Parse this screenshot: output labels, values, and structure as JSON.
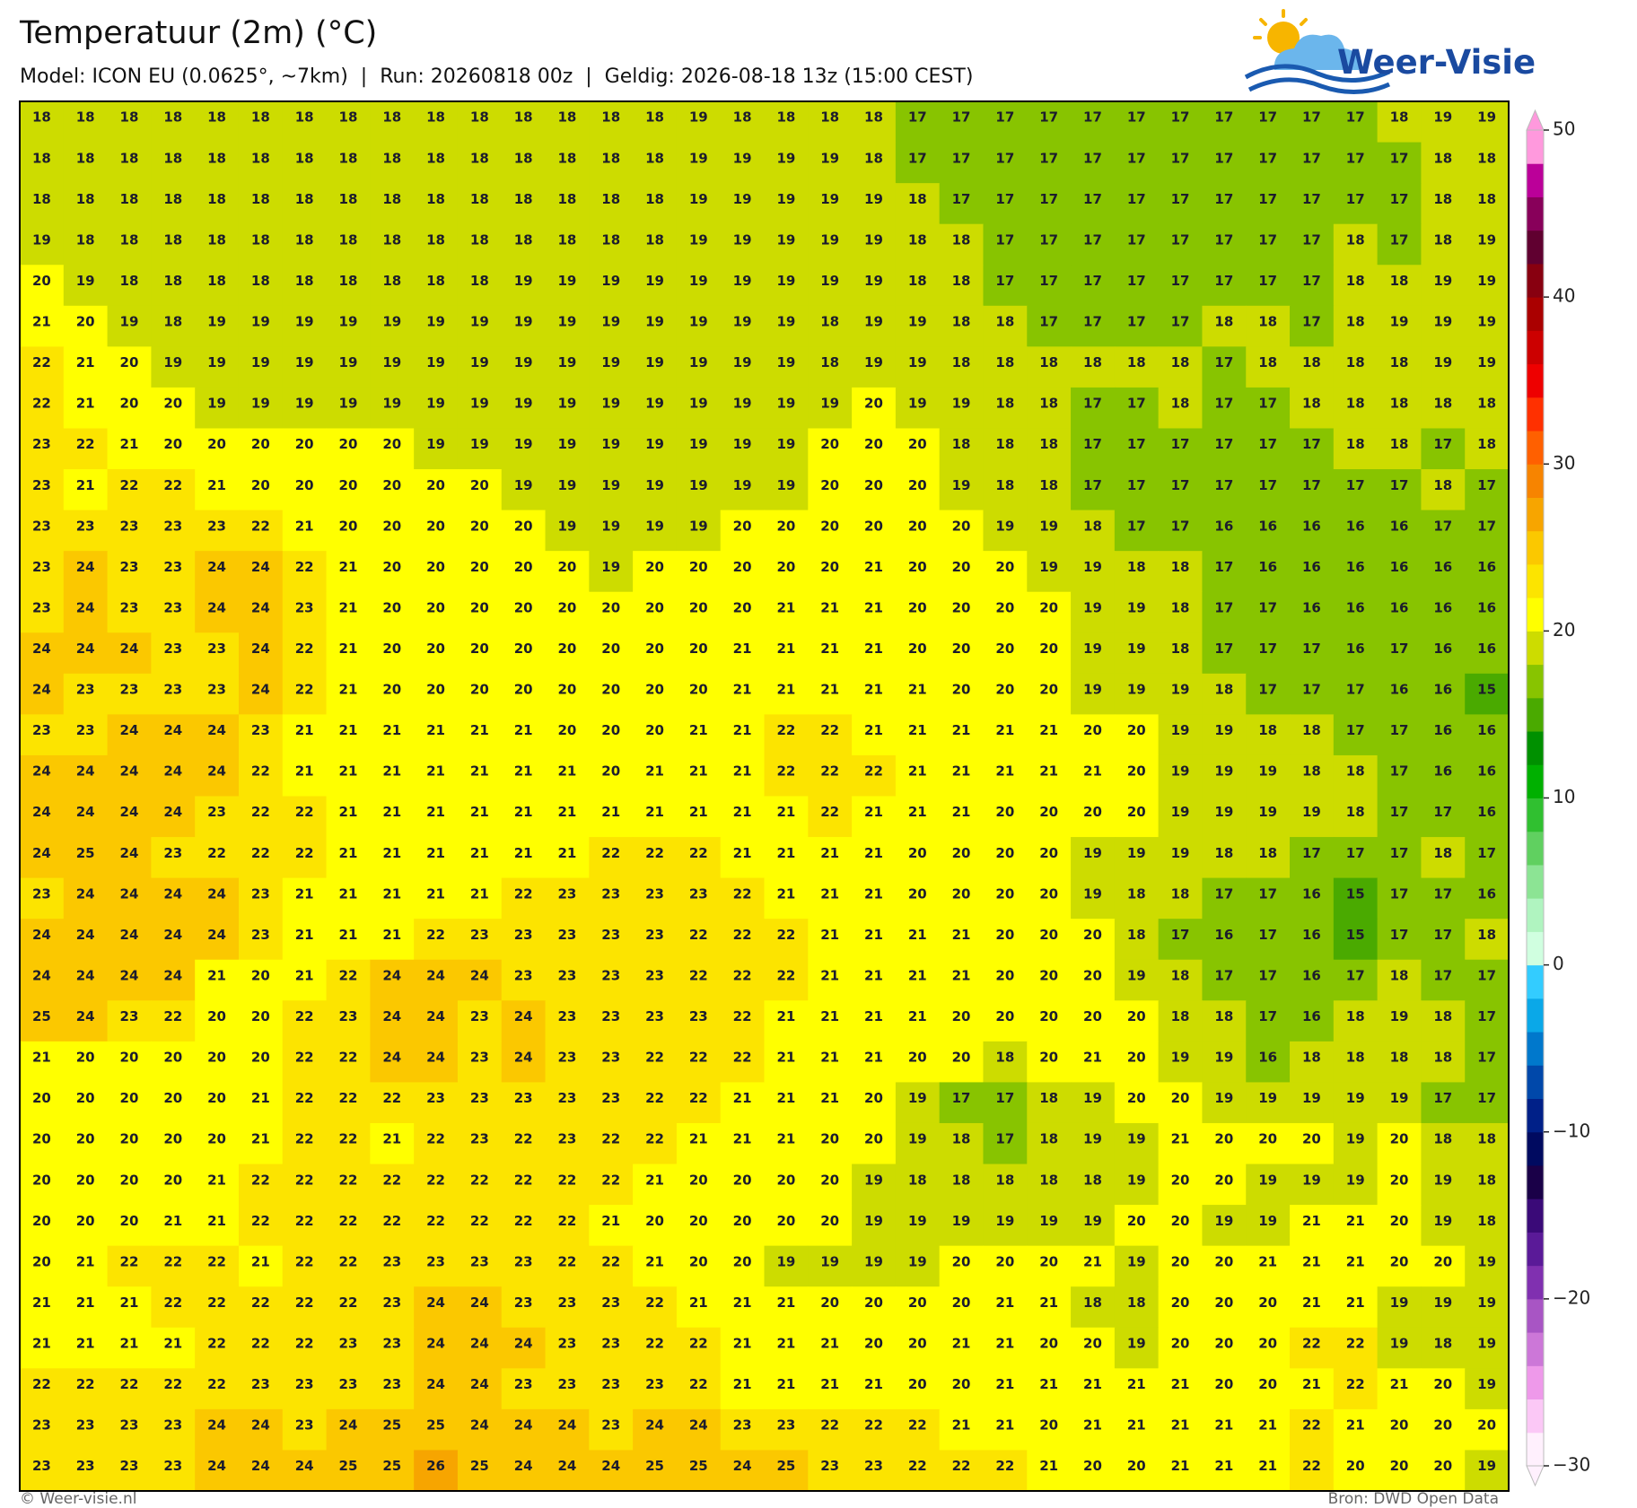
{
  "title": "Temperatuur (2m) (°C)",
  "subtitle": "Model: ICON EU (0.0625°, ~7km)  |  Run: 20260818 00z  |  Geldig: 2026-08-18 13z (15:00 CEST)",
  "logo": "Weer-Visie",
  "footer_left": "© Weer-visie.nl",
  "footer_right": "Bron: DWD Open Data",
  "grid": {
    "rows": [
      [
        18,
        18,
        18,
        18,
        18,
        18,
        18,
        18,
        18,
        18,
        18,
        18,
        18,
        18,
        18,
        19,
        18,
        18,
        18,
        18,
        17,
        17,
        17,
        17,
        17,
        17,
        17,
        17,
        17,
        17,
        17,
        18,
        19,
        19
      ],
      [
        18,
        18,
        18,
        18,
        18,
        18,
        18,
        18,
        18,
        18,
        18,
        18,
        18,
        18,
        18,
        19,
        19,
        19,
        19,
        18,
        17,
        17,
        17,
        17,
        17,
        17,
        17,
        17,
        17,
        17,
        17,
        17,
        18,
        18
      ],
      [
        18,
        18,
        18,
        18,
        18,
        18,
        18,
        18,
        18,
        18,
        18,
        18,
        18,
        18,
        18,
        19,
        19,
        19,
        19,
        19,
        18,
        17,
        17,
        17,
        17,
        17,
        17,
        17,
        17,
        17,
        17,
        17,
        18,
        18
      ],
      [
        19,
        18,
        18,
        18,
        18,
        18,
        18,
        18,
        18,
        18,
        18,
        18,
        18,
        18,
        18,
        19,
        19,
        19,
        19,
        19,
        18,
        18,
        17,
        17,
        17,
        17,
        17,
        17,
        17,
        17,
        18,
        17,
        18,
        19
      ],
      [
        20,
        19,
        18,
        18,
        18,
        18,
        18,
        18,
        18,
        18,
        18,
        19,
        19,
        19,
        19,
        19,
        19,
        19,
        19,
        19,
        18,
        18,
        17,
        17,
        17,
        17,
        17,
        17,
        17,
        17,
        18,
        18,
        19,
        19
      ],
      [
        21,
        20,
        19,
        18,
        19,
        19,
        19,
        19,
        19,
        19,
        19,
        19,
        19,
        19,
        19,
        19,
        19,
        19,
        18,
        19,
        19,
        18,
        18,
        17,
        17,
        17,
        17,
        18,
        18,
        17,
        18,
        19,
        19,
        19
      ],
      [
        22,
        21,
        20,
        19,
        19,
        19,
        19,
        19,
        19,
        19,
        19,
        19,
        19,
        19,
        19,
        19,
        19,
        19,
        18,
        19,
        19,
        18,
        18,
        18,
        18,
        18,
        18,
        17,
        18,
        18,
        18,
        18,
        19,
        19
      ],
      [
        22,
        21,
        20,
        20,
        19,
        19,
        19,
        19,
        19,
        19,
        19,
        19,
        19,
        19,
        19,
        19,
        19,
        19,
        19,
        20,
        19,
        19,
        18,
        18,
        17,
        17,
        18,
        17,
        17,
        18,
        18,
        18,
        18,
        18
      ],
      [
        23,
        22,
        21,
        20,
        20,
        20,
        20,
        20,
        20,
        19,
        19,
        19,
        19,
        19,
        19,
        19,
        19,
        19,
        20,
        20,
        20,
        18,
        18,
        18,
        17,
        17,
        17,
        17,
        17,
        17,
        18,
        18,
        17,
        18
      ],
      [
        23,
        21,
        22,
        22,
        21,
        20,
        20,
        20,
        20,
        20,
        20,
        19,
        19,
        19,
        19,
        19,
        19,
        19,
        20,
        20,
        20,
        19,
        18,
        18,
        17,
        17,
        17,
        17,
        17,
        17,
        17,
        17,
        18,
        17
      ],
      [
        23,
        23,
        23,
        23,
        23,
        22,
        21,
        20,
        20,
        20,
        20,
        20,
        19,
        19,
        19,
        19,
        20,
        20,
        20,
        20,
        20,
        20,
        19,
        19,
        18,
        17,
        17,
        16,
        16,
        16,
        16,
        16,
        17,
        17
      ],
      [
        23,
        24,
        23,
        23,
        24,
        24,
        22,
        21,
        20,
        20,
        20,
        20,
        20,
        19,
        20,
        20,
        20,
        20,
        20,
        21,
        20,
        20,
        20,
        19,
        19,
        18,
        18,
        17,
        16,
        16,
        16,
        16,
        16,
        16
      ],
      [
        23,
        24,
        23,
        23,
        24,
        24,
        23,
        21,
        20,
        20,
        20,
        20,
        20,
        20,
        20,
        20,
        20,
        21,
        21,
        21,
        20,
        20,
        20,
        20,
        19,
        19,
        18,
        17,
        17,
        16,
        16,
        16,
        16,
        16
      ],
      [
        24,
        24,
        24,
        23,
        23,
        24,
        22,
        21,
        20,
        20,
        20,
        20,
        20,
        20,
        20,
        20,
        21,
        21,
        21,
        21,
        20,
        20,
        20,
        20,
        19,
        19,
        18,
        17,
        17,
        17,
        16,
        17,
        16,
        16
      ],
      [
        24,
        23,
        23,
        23,
        23,
        24,
        22,
        21,
        20,
        20,
        20,
        20,
        20,
        20,
        20,
        20,
        21,
        21,
        21,
        21,
        21,
        20,
        20,
        20,
        19,
        19,
        19,
        18,
        17,
        17,
        17,
        16,
        16,
        15
      ],
      [
        23,
        23,
        24,
        24,
        24,
        23,
        21,
        21,
        21,
        21,
        21,
        21,
        20,
        20,
        20,
        21,
        21,
        22,
        22,
        21,
        21,
        21,
        21,
        21,
        20,
        20,
        19,
        19,
        18,
        18,
        17,
        17,
        16,
        16
      ],
      [
        24,
        24,
        24,
        24,
        24,
        22,
        21,
        21,
        21,
        21,
        21,
        21,
        21,
        20,
        21,
        21,
        21,
        22,
        22,
        22,
        21,
        21,
        21,
        21,
        21,
        20,
        19,
        19,
        19,
        18,
        18,
        17,
        16,
        16
      ],
      [
        24,
        24,
        24,
        24,
        23,
        22,
        22,
        21,
        21,
        21,
        21,
        21,
        21,
        21,
        21,
        21,
        21,
        21,
        22,
        21,
        21,
        21,
        20,
        20,
        20,
        20,
        19,
        19,
        19,
        19,
        18,
        17,
        17,
        16
      ],
      [
        24,
        25,
        24,
        23,
        22,
        22,
        22,
        21,
        21,
        21,
        21,
        21,
        21,
        22,
        22,
        22,
        21,
        21,
        21,
        21,
        20,
        20,
        20,
        20,
        19,
        19,
        19,
        18,
        18,
        17,
        17,
        17,
        18,
        17
      ],
      [
        23,
        24,
        24,
        24,
        24,
        23,
        21,
        21,
        21,
        21,
        21,
        22,
        23,
        23,
        23,
        23,
        22,
        21,
        21,
        21,
        20,
        20,
        20,
        20,
        19,
        18,
        18,
        17,
        17,
        16,
        15,
        17,
        17,
        16
      ],
      [
        24,
        24,
        24,
        24,
        24,
        23,
        21,
        21,
        21,
        22,
        23,
        23,
        23,
        23,
        23,
        22,
        22,
        22,
        21,
        21,
        21,
        21,
        20,
        20,
        20,
        18,
        17,
        16,
        17,
        16,
        15,
        17,
        17,
        18
      ],
      [
        24,
        24,
        24,
        24,
        21,
        20,
        21,
        22,
        24,
        24,
        24,
        23,
        23,
        23,
        23,
        22,
        22,
        22,
        21,
        21,
        21,
        21,
        20,
        20,
        20,
        19,
        18,
        17,
        17,
        16,
        17,
        18,
        17,
        17
      ],
      [
        25,
        24,
        23,
        22,
        20,
        20,
        22,
        23,
        24,
        24,
        23,
        24,
        23,
        23,
        23,
        23,
        22,
        21,
        21,
        21,
        21,
        20,
        20,
        20,
        20,
        20,
        18,
        18,
        17,
        16,
        18,
        19,
        18,
        17
      ],
      [
        21,
        20,
        20,
        20,
        20,
        20,
        22,
        22,
        24,
        24,
        23,
        24,
        23,
        23,
        22,
        22,
        22,
        21,
        21,
        21,
        20,
        20,
        18,
        20,
        21,
        20,
        19,
        19,
        16,
        18,
        18,
        18,
        18,
        17
      ],
      [
        20,
        20,
        20,
        20,
        20,
        21,
        22,
        22,
        22,
        23,
        23,
        23,
        23,
        23,
        22,
        22,
        21,
        21,
        21,
        20,
        19,
        17,
        17,
        18,
        19,
        20,
        20,
        19,
        19,
        19,
        19,
        19,
        17,
        17
      ],
      [
        20,
        20,
        20,
        20,
        20,
        21,
        22,
        22,
        21,
        22,
        23,
        22,
        23,
        22,
        22,
        21,
        21,
        21,
        20,
        20,
        19,
        18,
        17,
        18,
        19,
        19,
        21,
        20,
        20,
        20,
        19,
        20,
        18,
        18
      ],
      [
        20,
        20,
        20,
        20,
        21,
        22,
        22,
        22,
        22,
        22,
        22,
        22,
        22,
        22,
        21,
        20,
        20,
        20,
        20,
        19,
        18,
        18,
        18,
        18,
        18,
        19,
        20,
        20,
        19,
        19,
        19,
        20,
        19,
        18
      ],
      [
        20,
        20,
        20,
        21,
        21,
        22,
        22,
        22,
        22,
        22,
        22,
        22,
        22,
        21,
        20,
        20,
        20,
        20,
        20,
        19,
        19,
        19,
        19,
        19,
        19,
        20,
        20,
        19,
        19,
        21,
        21,
        20,
        19,
        18
      ],
      [
        20,
        21,
        22,
        22,
        22,
        21,
        22,
        22,
        23,
        23,
        23,
        23,
        22,
        22,
        21,
        20,
        20,
        19,
        19,
        19,
        19,
        20,
        20,
        20,
        21,
        19,
        20,
        20,
        21,
        21,
        21,
        20,
        20,
        19
      ],
      [
        21,
        21,
        21,
        22,
        22,
        22,
        22,
        22,
        23,
        24,
        24,
        23,
        23,
        23,
        22,
        21,
        21,
        21,
        20,
        20,
        20,
        20,
        21,
        21,
        18,
        18,
        20,
        20,
        20,
        21,
        21,
        19,
        19,
        19
      ],
      [
        21,
        21,
        21,
        21,
        22,
        22,
        22,
        23,
        23,
        24,
        24,
        24,
        23,
        23,
        22,
        22,
        21,
        21,
        21,
        20,
        20,
        21,
        21,
        20,
        20,
        19,
        20,
        20,
        20,
        22,
        22,
        19,
        18,
        19
      ],
      [
        22,
        22,
        22,
        22,
        22,
        23,
        23,
        23,
        23,
        24,
        24,
        23,
        23,
        23,
        23,
        22,
        21,
        21,
        21,
        21,
        20,
        20,
        21,
        21,
        21,
        21,
        21,
        20,
        20,
        21,
        22,
        21,
        20,
        19
      ],
      [
        23,
        23,
        23,
        23,
        24,
        24,
        23,
        24,
        25,
        25,
        24,
        24,
        24,
        23,
        24,
        24,
        23,
        23,
        22,
        22,
        22,
        21,
        21,
        20,
        21,
        21,
        21,
        21,
        21,
        22,
        21,
        20,
        20,
        20
      ],
      [
        23,
        23,
        23,
        23,
        24,
        24,
        24,
        25,
        25,
        26,
        25,
        24,
        24,
        24,
        25,
        25,
        24,
        25,
        23,
        23,
        22,
        22,
        22,
        21,
        20,
        20,
        21,
        21,
        21,
        22,
        20,
        20,
        20,
        19
      ]
    ]
  },
  "colorbar": {
    "lim": [
      -30,
      50
    ],
    "step": 2,
    "ticks": [
      50,
      40,
      30,
      20,
      10,
      0,
      {
        "value": -10,
        "label": "−10"
      },
      {
        "value": -20,
        "label": "−20"
      },
      {
        "value": -30,
        "label": "−30"
      }
    ],
    "colors": [
      "#fff0fd",
      "#fbc8f6",
      "#ee99ea",
      "#cc77d8",
      "#a855c4",
      "#8030b0",
      "#5a1a98",
      "#3a0a78",
      "#1a0048",
      "#000a60",
      "#002088",
      "#0048aa",
      "#0078cc",
      "#0aa8e8",
      "#33ccff",
      "#d0ffe0",
      "#b0f4c0",
      "#8ce494",
      "#60d060",
      "#30c030",
      "#00b000",
      "#009000",
      "#4aaa00",
      "#88c400",
      "#cddc00",
      "#ffff00",
      "#fce400",
      "#fbc800",
      "#f7a500",
      "#f78400",
      "#ff6000",
      "#ff3000",
      "#ee0000",
      "#cc0000",
      "#aa0000",
      "#880010",
      "#600030",
      "#88005a",
      "#bb0099",
      "#ff99dd"
    ]
  }
}
